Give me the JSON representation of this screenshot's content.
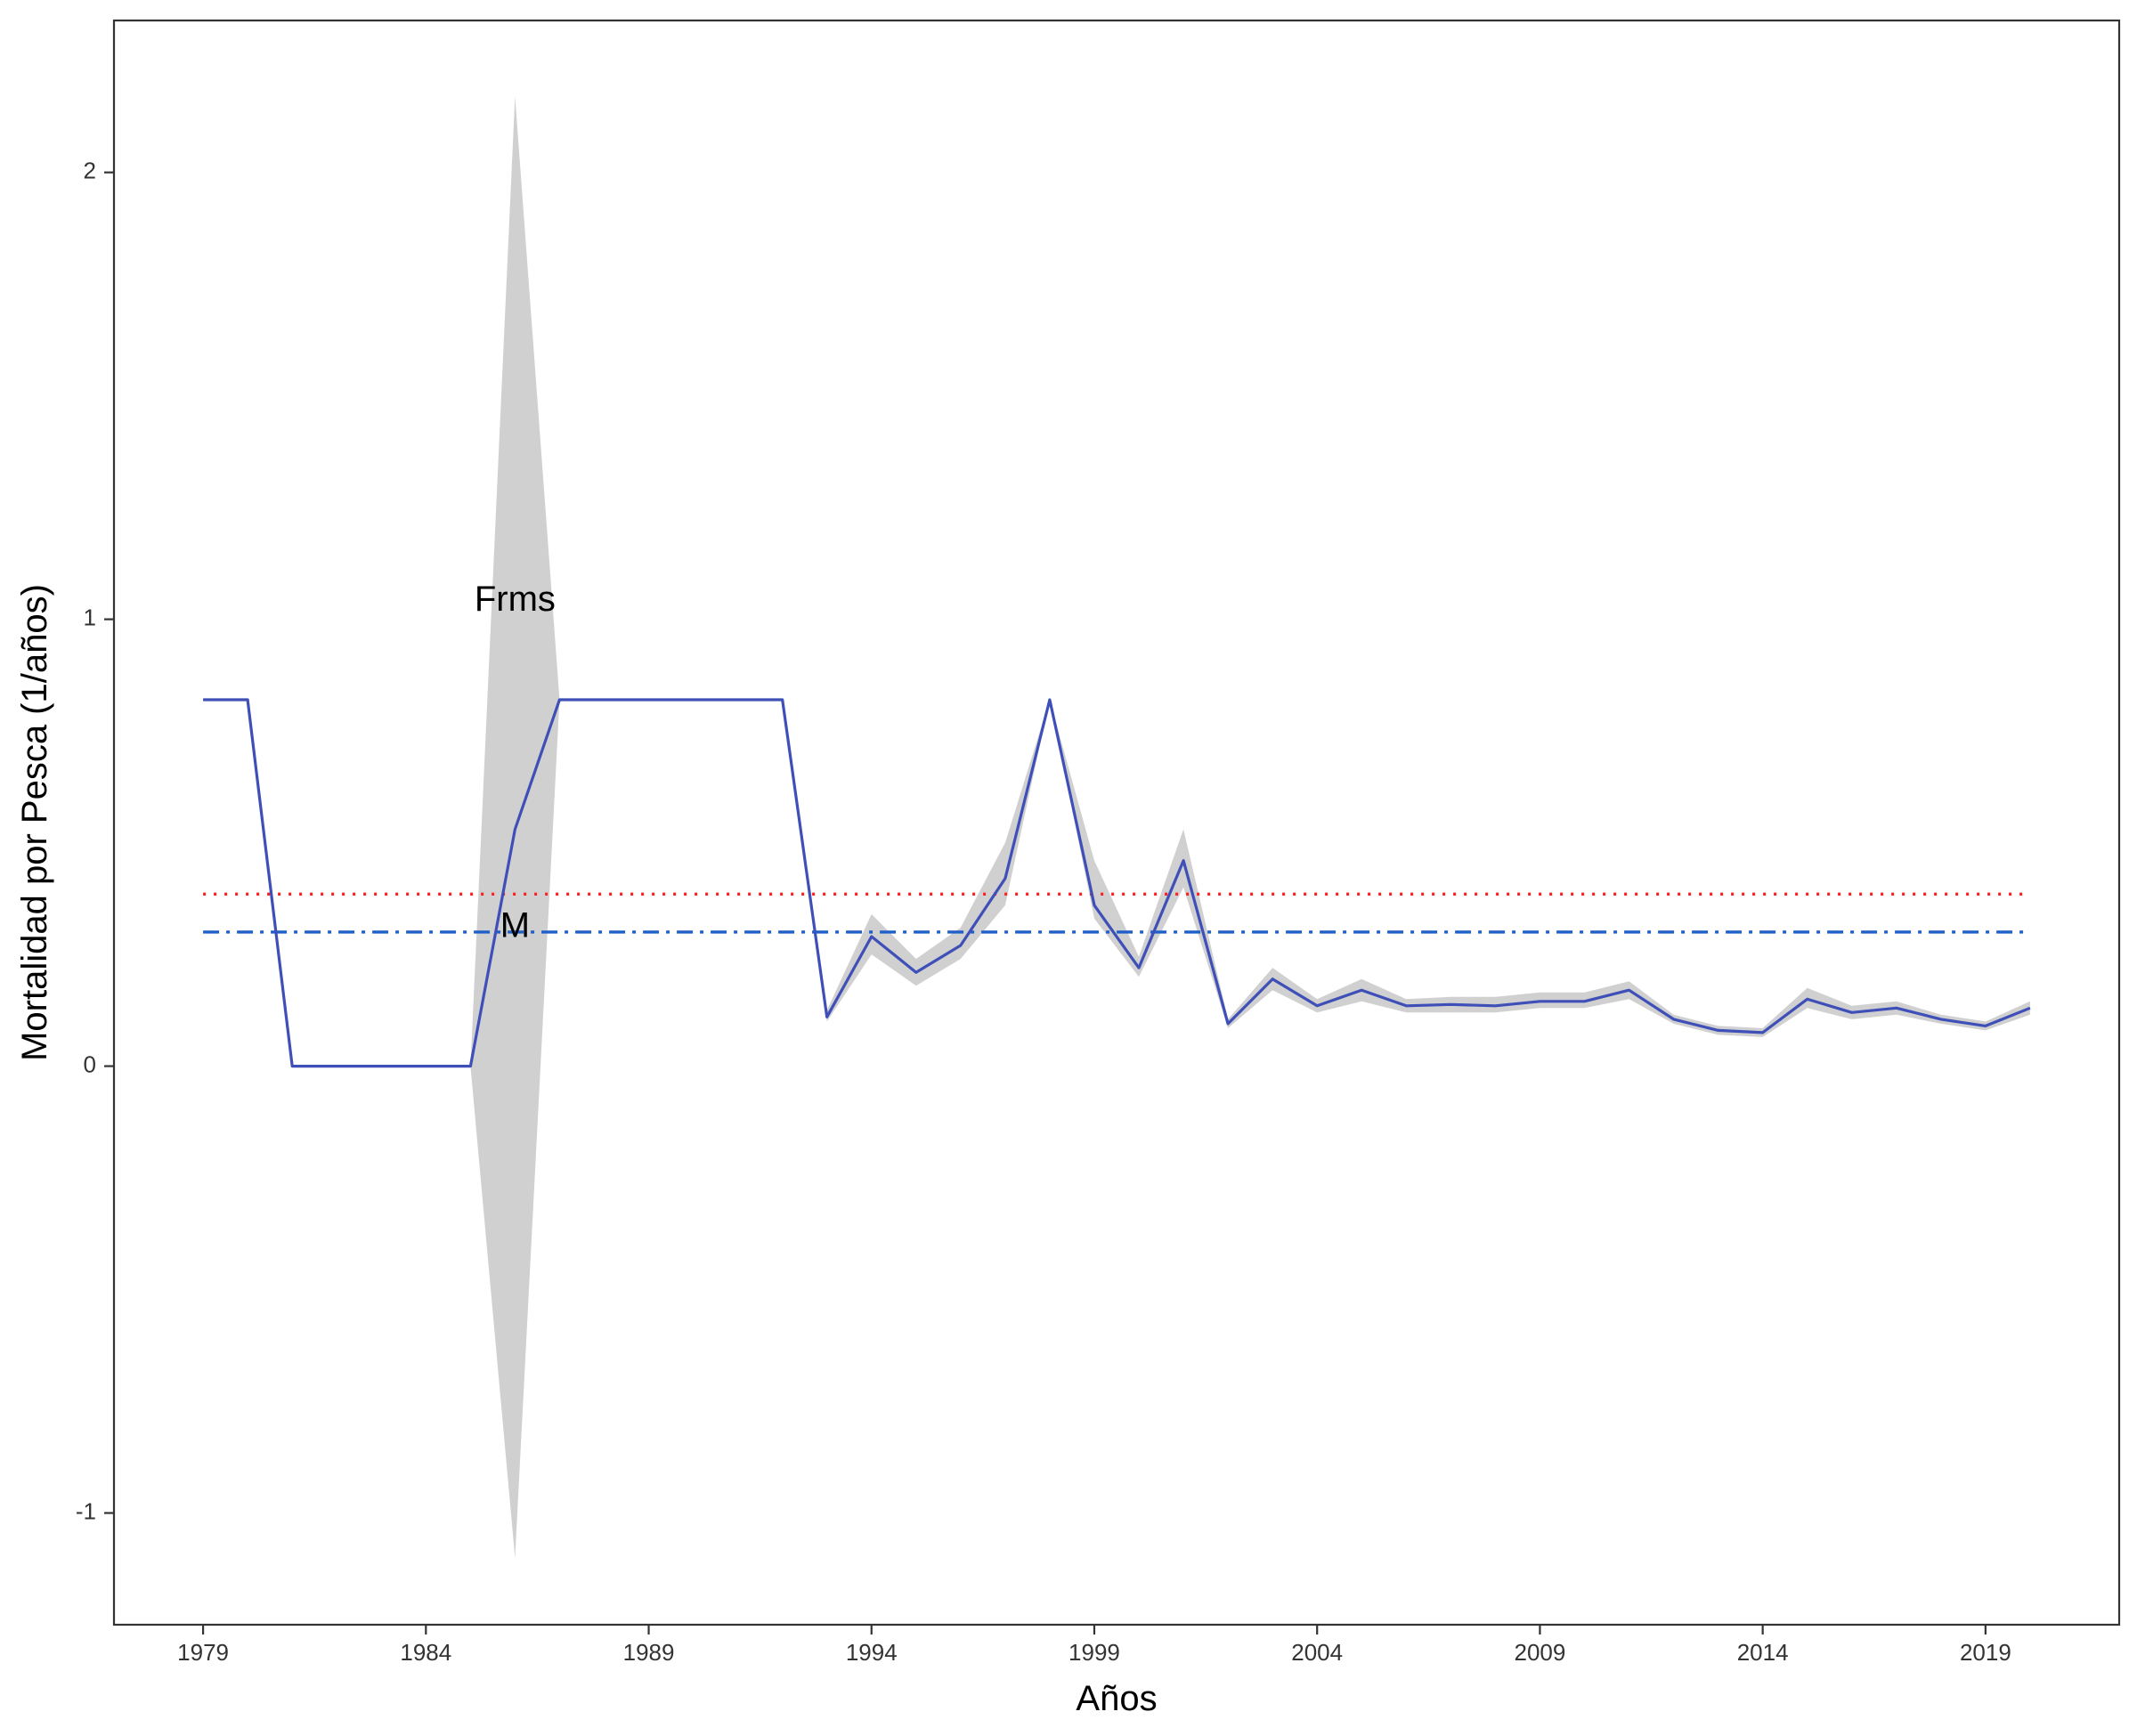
{
  "chart_data": {
    "type": "line",
    "title": "",
    "xlabel": "Años",
    "ylabel": "Mortalidad por Pesca (1/años)",
    "xlim": [
      1977,
      2022
    ],
    "ylim": [
      -1.25,
      2.34
    ],
    "grid": false,
    "x_ticks": [
      1979,
      1984,
      1989,
      1994,
      1999,
      2004,
      2009,
      2014,
      2019
    ],
    "y_ticks": [
      -1,
      0,
      1,
      2
    ],
    "y_tick_labels": [
      "-1",
      "0",
      "1",
      "2"
    ],
    "series": [
      {
        "color": "#3F4FB8",
        "x": [
          1979,
          1980,
          1981,
          1982,
          1983,
          1984,
          1985,
          1986,
          1987,
          1988,
          1989,
          1990,
          1991,
          1992,
          1993,
          1994,
          1995,
          1996,
          1997,
          1998,
          1999,
          2000,
          2001,
          2002,
          2003,
          2004,
          2005,
          2006,
          2007,
          2008,
          2009,
          2010,
          2011,
          2012,
          2013,
          2014,
          2015,
          2016,
          2017,
          2018,
          2019,
          2020
        ],
        "y": [
          0.82,
          0.82,
          0.0,
          0.0,
          0.0,
          0.0,
          0.0,
          0.53,
          0.82,
          0.82,
          0.82,
          0.82,
          0.82,
          0.82,
          0.11,
          0.29,
          0.21,
          0.27,
          0.42,
          0.82,
          0.36,
          0.22,
          0.46,
          0.095,
          0.195,
          0.135,
          0.17,
          0.135,
          0.138,
          0.135,
          0.145,
          0.145,
          0.17,
          0.105,
          0.08,
          0.075,
          0.15,
          0.12,
          0.13,
          0.105,
          0.09,
          0.13
        ],
        "lower": [
          0.82,
          0.82,
          0.0,
          0.0,
          0.0,
          0.0,
          0.0,
          -1.1,
          0.82,
          0.82,
          0.82,
          0.82,
          0.82,
          0.82,
          0.1,
          0.25,
          0.18,
          0.24,
          0.36,
          0.82,
          0.33,
          0.2,
          0.4,
          0.085,
          0.17,
          0.12,
          0.145,
          0.12,
          0.12,
          0.12,
          0.13,
          0.13,
          0.15,
          0.095,
          0.07,
          0.065,
          0.13,
          0.105,
          0.115,
          0.095,
          0.08,
          0.115
        ],
        "upper": [
          0.82,
          0.82,
          0.0,
          0.0,
          0.0,
          0.0,
          0.0,
          2.17,
          0.82,
          0.82,
          0.82,
          0.82,
          0.82,
          0.82,
          0.125,
          0.34,
          0.24,
          0.31,
          0.5,
          0.82,
          0.46,
          0.245,
          0.53,
          0.105,
          0.22,
          0.15,
          0.195,
          0.15,
          0.155,
          0.155,
          0.165,
          0.165,
          0.19,
          0.115,
          0.09,
          0.085,
          0.175,
          0.135,
          0.145,
          0.115,
          0.1,
          0.145
        ],
        "band_color": "#D0D0D0"
      }
    ],
    "reference_lines": [
      {
        "label": "Frms",
        "y": 0.385,
        "color": "#FF2020",
        "style": "dotted"
      },
      {
        "label": "M",
        "y": 0.3,
        "color": "#1F5FC8",
        "style": "dashdot"
      }
    ],
    "annotations": [
      {
        "text": "Frms",
        "x": 1986,
        "y": 1.04
      },
      {
        "text": "M",
        "x": 1986,
        "y": 0.31
      }
    ],
    "x_range_line": [
      1979,
      2020
    ]
  }
}
